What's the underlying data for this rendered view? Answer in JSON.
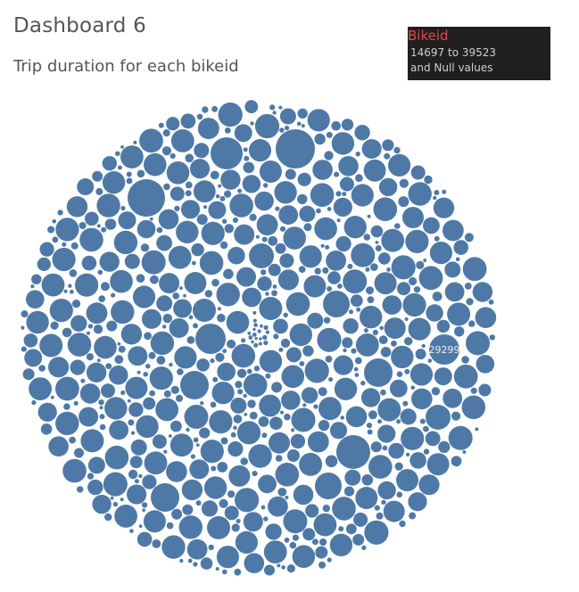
{
  "dashboard": {
    "title": "Dashboard 6"
  },
  "chart": {
    "title": "Trip duration for each bikeid"
  },
  "legend": {
    "title": "Bikeid",
    "range_text": "14697 to 39523",
    "null_text": "and Null values"
  },
  "colors": {
    "bubble": "#4e79a7",
    "legend_bg": "#1f1f1f",
    "legend_title": "#e0474c",
    "text": "#555555"
  },
  "chart_data": {
    "type": "packed-bubble",
    "measure": "Trip duration",
    "dimension": "bikeid",
    "bikeid_range": [
      14697,
      39523
    ],
    "includes_null": true,
    "labeled_bubbles": [
      {
        "bikeid": "29299"
      }
    ],
    "bubble_count_approx": 700
  }
}
